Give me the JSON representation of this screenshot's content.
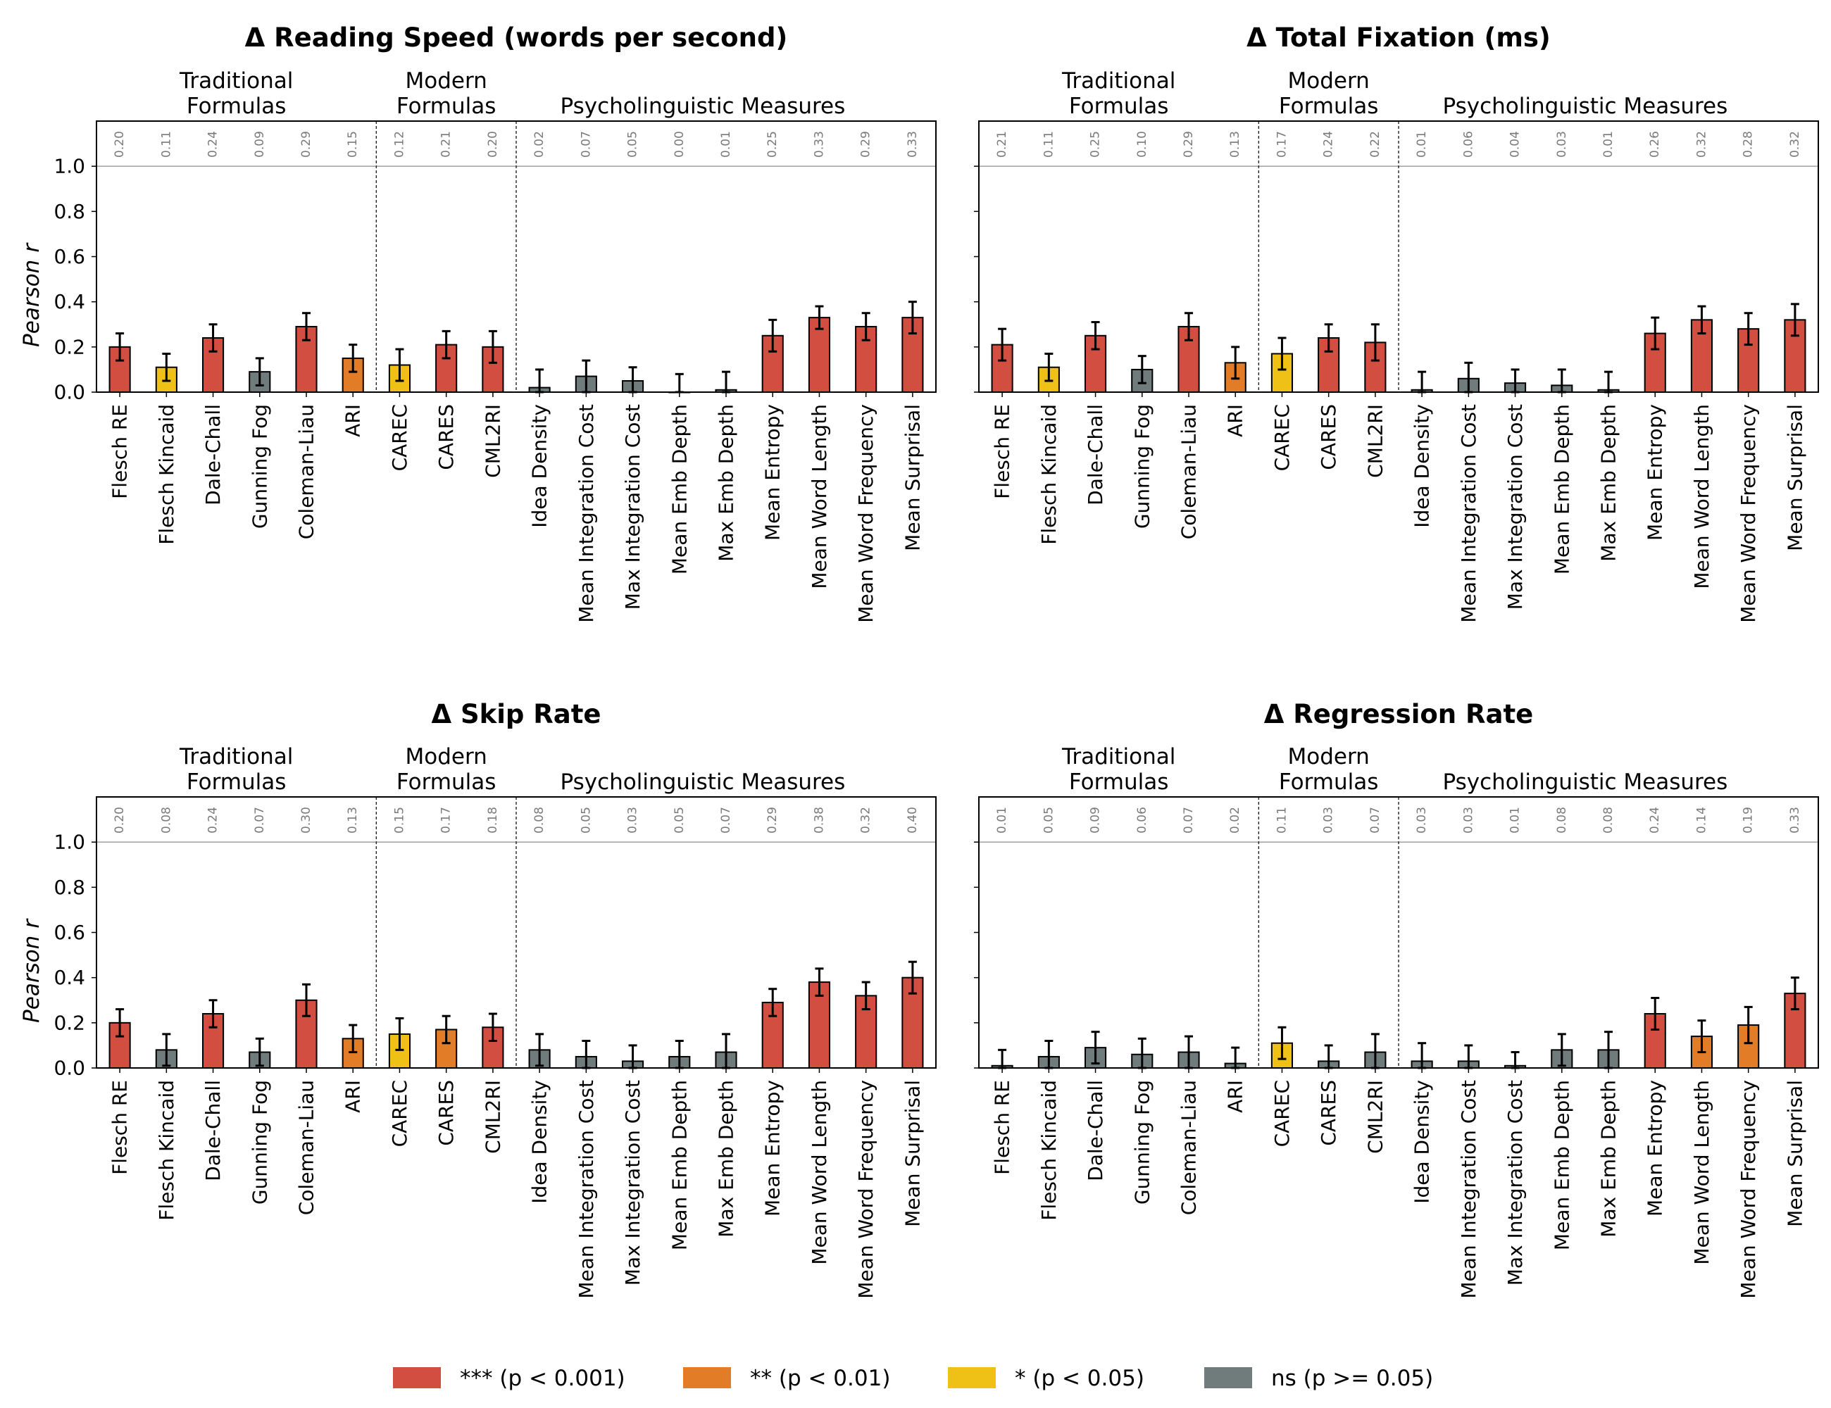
{
  "chart_data": [
    {
      "type": "bar",
      "title": "Δ Reading Speed (words per second)",
      "ylabel": "Pearson r",
      "ylim": [
        0,
        1.2
      ],
      "yticks": [
        "0.0",
        "0.2",
        "0.4",
        "0.6",
        "0.8",
        "1.0"
      ],
      "reference_line": 1.0,
      "show_ylabel": true,
      "groups": [
        {
          "label_lines": [
            "Traditional",
            "Formulas"
          ],
          "start": 0,
          "end": 5
        },
        {
          "label_lines": [
            "Modern",
            "Formulas"
          ],
          "start": 6,
          "end": 8
        },
        {
          "label_lines": [
            "Psycholinguistic Measures"
          ],
          "start": 9,
          "end": 16
        }
      ],
      "categories": [
        "Flesch RE",
        "Flesch Kincaid",
        "Dale-Chall",
        "Gunning Fog",
        "Coleman-Liau",
        "ARI",
        "CAREC",
        "CARES",
        "CML2RI",
        "Idea Density",
        "Mean Integration Cost",
        "Max Integration Cost",
        "Mean Emb Depth",
        "Max Emb Depth",
        "Mean Entropy",
        "Mean Word Length",
        "Mean Word Frequency",
        "Mean Surprisal"
      ],
      "values": [
        0.2,
        0.11,
        0.24,
        0.09,
        0.29,
        0.15,
        0.12,
        0.21,
        0.2,
        0.02,
        0.07,
        0.05,
        0.0,
        0.01,
        0.25,
        0.33,
        0.29,
        0.33
      ],
      "errors": [
        0.06,
        0.06,
        0.06,
        0.06,
        0.06,
        0.06,
        0.07,
        0.06,
        0.07,
        0.08,
        0.07,
        0.06,
        0.08,
        0.08,
        0.07,
        0.05,
        0.06,
        0.07
      ],
      "value_labels": [
        "0.20",
        "0.11",
        "0.24",
        "0.09",
        "0.29",
        "0.15",
        "0.12",
        "0.21",
        "0.20",
        "0.02",
        "0.07",
        "0.05",
        "0.00",
        "0.01",
        "0.25",
        "0.33",
        "0.29",
        "0.33"
      ],
      "significance": [
        "***",
        "*",
        "***",
        "ns",
        "***",
        "**",
        "*",
        "***",
        "***",
        "ns",
        "ns",
        "ns",
        "ns",
        "ns",
        "***",
        "***",
        "***",
        "***"
      ]
    },
    {
      "type": "bar",
      "title": "Δ Total Fixation (ms)",
      "ylabel": "",
      "ylim": [
        0,
        1.2
      ],
      "yticks": [
        "",
        "",
        "",
        "",
        "",
        ""
      ],
      "reference_line": 1.0,
      "show_ylabel": false,
      "groups": [
        {
          "label_lines": [
            "Traditional",
            "Formulas"
          ],
          "start": 0,
          "end": 5
        },
        {
          "label_lines": [
            "Modern",
            "Formulas"
          ],
          "start": 6,
          "end": 8
        },
        {
          "label_lines": [
            "Psycholinguistic Measures"
          ],
          "start": 9,
          "end": 16
        }
      ],
      "categories": [
        "Flesch RE",
        "Flesch Kincaid",
        "Dale-Chall",
        "Gunning Fog",
        "Coleman-Liau",
        "ARI",
        "CAREC",
        "CARES",
        "CML2RI",
        "Idea Density",
        "Mean Integration Cost",
        "Max Integration Cost",
        "Mean Emb Depth",
        "Max Emb Depth",
        "Mean Entropy",
        "Mean Word Length",
        "Mean Word Frequency",
        "Mean Surprisal"
      ],
      "values": [
        0.21,
        0.11,
        0.25,
        0.1,
        0.29,
        0.13,
        0.17,
        0.24,
        0.22,
        0.01,
        0.06,
        0.04,
        0.03,
        0.01,
        0.26,
        0.32,
        0.28,
        0.32
      ],
      "errors": [
        0.07,
        0.06,
        0.06,
        0.06,
        0.06,
        0.07,
        0.07,
        0.06,
        0.08,
        0.08,
        0.07,
        0.06,
        0.07,
        0.08,
        0.07,
        0.06,
        0.07,
        0.07
      ],
      "value_labels": [
        "0.21",
        "0.11",
        "0.25",
        "0.10",
        "0.29",
        "0.13",
        "0.17",
        "0.24",
        "0.22",
        "0.01",
        "0.06",
        "0.04",
        "0.03",
        "0.01",
        "0.26",
        "0.32",
        "0.28",
        "0.32"
      ],
      "significance": [
        "***",
        "*",
        "***",
        "ns",
        "***",
        "**",
        "*",
        "***",
        "***",
        "ns",
        "ns",
        "ns",
        "ns",
        "ns",
        "***",
        "***",
        "***",
        "***"
      ]
    },
    {
      "type": "bar",
      "title": "Δ Skip Rate",
      "ylabel": "Pearson r",
      "ylim": [
        0,
        1.2
      ],
      "yticks": [
        "0.0",
        "0.2",
        "0.4",
        "0.6",
        "0.8",
        "1.0"
      ],
      "reference_line": 1.0,
      "show_ylabel": true,
      "groups": [
        {
          "label_lines": [
            "Traditional",
            "Formulas"
          ],
          "start": 0,
          "end": 5
        },
        {
          "label_lines": [
            "Modern",
            "Formulas"
          ],
          "start": 6,
          "end": 8
        },
        {
          "label_lines": [
            "Psycholinguistic Measures"
          ],
          "start": 9,
          "end": 16
        }
      ],
      "categories": [
        "Flesch RE",
        "Flesch Kincaid",
        "Dale-Chall",
        "Gunning Fog",
        "Coleman-Liau",
        "ARI",
        "CAREC",
        "CARES",
        "CML2RI",
        "Idea Density",
        "Mean Integration Cost",
        "Max Integration Cost",
        "Mean Emb Depth",
        "Max Emb Depth",
        "Mean Entropy",
        "Mean Word Length",
        "Mean Word Frequency",
        "Mean Surprisal"
      ],
      "values": [
        0.2,
        0.08,
        0.24,
        0.07,
        0.3,
        0.13,
        0.15,
        0.17,
        0.18,
        0.08,
        0.05,
        0.03,
        0.05,
        0.07,
        0.29,
        0.38,
        0.32,
        0.4
      ],
      "errors": [
        0.06,
        0.07,
        0.06,
        0.06,
        0.07,
        0.06,
        0.07,
        0.06,
        0.06,
        0.07,
        0.07,
        0.07,
        0.07,
        0.08,
        0.06,
        0.06,
        0.06,
        0.07
      ],
      "value_labels": [
        "0.20",
        "0.08",
        "0.24",
        "0.07",
        "0.30",
        "0.13",
        "0.15",
        "0.17",
        "0.18",
        "0.08",
        "0.05",
        "0.03",
        "0.05",
        "0.07",
        "0.29",
        "0.38",
        "0.32",
        "0.40"
      ],
      "significance": [
        "***",
        "ns",
        "***",
        "ns",
        "***",
        "**",
        "*",
        "**",
        "***",
        "ns",
        "ns",
        "ns",
        "ns",
        "ns",
        "***",
        "***",
        "***",
        "***"
      ]
    },
    {
      "type": "bar",
      "title": "Δ Regression Rate",
      "ylabel": "",
      "ylim": [
        0,
        1.2
      ],
      "yticks": [
        "",
        "",
        "",
        "",
        "",
        ""
      ],
      "reference_line": 1.0,
      "show_ylabel": false,
      "groups": [
        {
          "label_lines": [
            "Traditional",
            "Formulas"
          ],
          "start": 0,
          "end": 5
        },
        {
          "label_lines": [
            "Modern",
            "Formulas"
          ],
          "start": 6,
          "end": 8
        },
        {
          "label_lines": [
            "Psycholinguistic Measures"
          ],
          "start": 9,
          "end": 16
        }
      ],
      "categories": [
        "Flesch RE",
        "Flesch Kincaid",
        "Dale-Chall",
        "Gunning Fog",
        "Coleman-Liau",
        "ARI",
        "CAREC",
        "CARES",
        "CML2RI",
        "Idea Density",
        "Mean Integration Cost",
        "Max Integration Cost",
        "Mean Emb Depth",
        "Max Emb Depth",
        "Mean Entropy",
        "Mean Word Length",
        "Mean Word Frequency",
        "Mean Surprisal"
      ],
      "values": [
        0.01,
        0.05,
        0.09,
        0.06,
        0.07,
        0.02,
        0.11,
        0.03,
        0.07,
        0.03,
        0.03,
        0.01,
        0.08,
        0.08,
        0.24,
        0.14,
        0.19,
        0.33
      ],
      "errors": [
        0.07,
        0.07,
        0.07,
        0.07,
        0.07,
        0.07,
        0.07,
        0.07,
        0.08,
        0.08,
        0.07,
        0.06,
        0.07,
        0.08,
        0.07,
        0.07,
        0.08,
        0.07
      ],
      "value_labels": [
        "0.01",
        "0.05",
        "0.09",
        "0.06",
        "0.07",
        "0.02",
        "0.11",
        "0.03",
        "0.07",
        "0.03",
        "0.03",
        "0.01",
        "0.08",
        "0.08",
        "0.24",
        "0.14",
        "0.19",
        "0.33"
      ],
      "significance": [
        "ns",
        "ns",
        "ns",
        "ns",
        "ns",
        "ns",
        "*",
        "ns",
        "ns",
        "ns",
        "ns",
        "ns",
        "ns",
        "ns",
        "***",
        "**",
        "**",
        "***"
      ]
    }
  ],
  "legend": {
    "placement": "bottom-center",
    "items": [
      {
        "key": "***",
        "label": "*** (p < 0.001)",
        "color": "#d14e40"
      },
      {
        "key": "**",
        "label": "** (p < 0.01)",
        "color": "#e27c27"
      },
      {
        "key": "*",
        "label": "* (p < 0.05)",
        "color": "#efc016"
      },
      {
        "key": "ns",
        "label": "ns (p >= 0.05)",
        "color": "#707b7c"
      }
    ]
  }
}
